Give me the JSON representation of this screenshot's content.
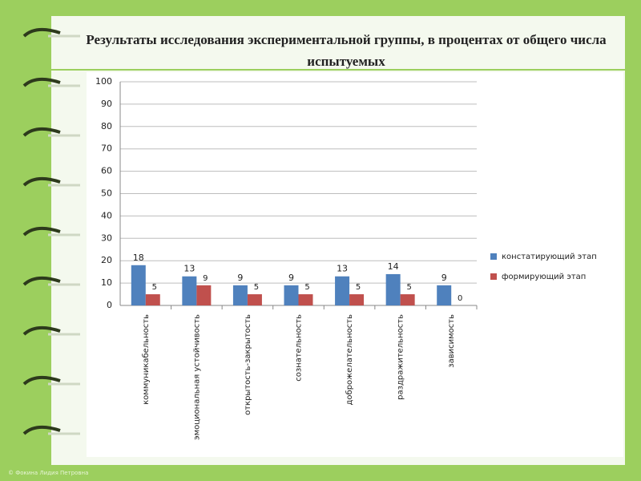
{
  "chart_data": {
    "type": "bar",
    "title": "Результаты исследования экспериментальной группы, в процентах от общего числа испытуемых",
    "categories": [
      "коммуникабельность",
      "эмоциональная устойчивость",
      "открытость-закрытость",
      "сознательность",
      "доброжелательность",
      "раздражительность",
      "зависимость"
    ],
    "series": [
      {
        "name": "констатирующий этап",
        "color": "#4f81bd",
        "values": [
          18,
          13,
          9,
          9,
          13,
          14,
          9
        ]
      },
      {
        "name": "формирующий этап",
        "color": "#c0504d",
        "values": [
          5,
          9,
          5,
          5,
          5,
          5,
          0
        ]
      }
    ],
    "ylim": [
      0,
      100
    ],
    "yticks": [
      0,
      10,
      20,
      30,
      40,
      50,
      60,
      70,
      80,
      90,
      100
    ],
    "grid": true,
    "legend": "right"
  },
  "footer": "© Фокина Лидия Петровна"
}
